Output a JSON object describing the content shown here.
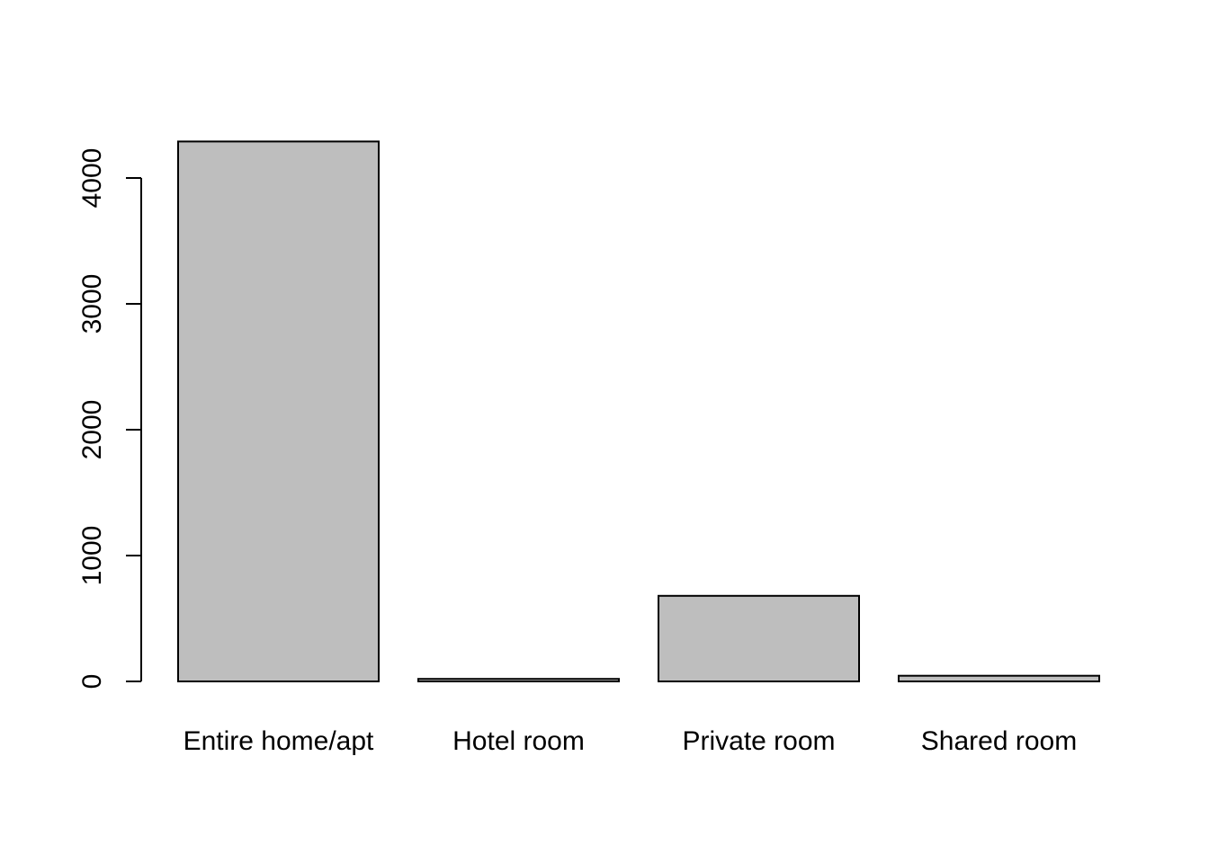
{
  "chart_data": {
    "type": "bar",
    "categories": [
      "Entire home/apt",
      "Hotel room",
      "Private room",
      "Shared room"
    ],
    "values": [
      4290,
      20,
      680,
      45
    ],
    "ylim": [
      0,
      4290
    ],
    "yticks": [
      0,
      1000,
      2000,
      3000,
      4000
    ],
    "ytick_labels": [
      "0",
      "1000",
      "2000",
      "3000",
      "4000"
    ],
    "grid": false,
    "legend": "none",
    "colors": {
      "bar_fill": "#bebebe",
      "bar_stroke": "#000000",
      "axis": "#000000",
      "background": "#ffffff"
    }
  }
}
